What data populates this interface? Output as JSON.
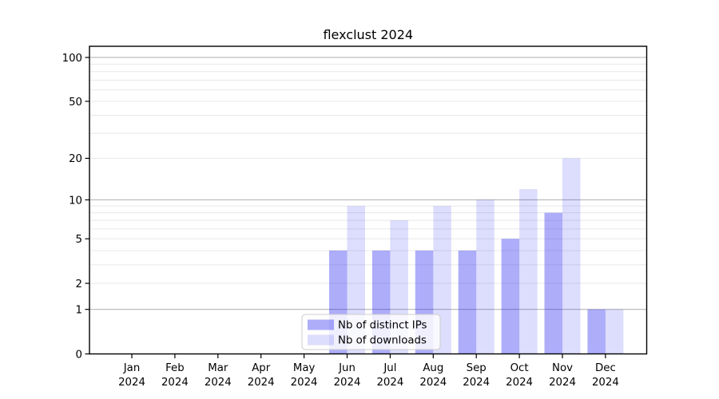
{
  "title": "flexclust 2024",
  "chart_data": {
    "type": "bar",
    "title": "flexclust 2024",
    "months": [
      "Jan",
      "Feb",
      "Mar",
      "Apr",
      "May",
      "Jun",
      "Jul",
      "Aug",
      "Sep",
      "Oct",
      "Nov",
      "Dec"
    ],
    "year_label": "2024",
    "categories": [
      "Jan 2024",
      "Feb 2024",
      "Mar 2024",
      "Apr 2024",
      "May 2024",
      "Jun 2024",
      "Jul 2024",
      "Aug 2024",
      "Sep 2024",
      "Oct 2024",
      "Nov 2024",
      "Dec 2024"
    ],
    "series": [
      {
        "key": "distinct-ips",
        "name": "Nb of distinct IPs",
        "color": "rgba(20,20,240,0.35)",
        "values": [
          0,
          0,
          0,
          0,
          0,
          4,
          4,
          4,
          4,
          5,
          8,
          1
        ]
      },
      {
        "key": "downloads",
        "name": "Nb of downloads",
        "color": "rgba(20,20,240,0.145)",
        "values": [
          0,
          0,
          0,
          0,
          0,
          9,
          7,
          9,
          10,
          12,
          20,
          1
        ]
      }
    ],
    "y_axis": {
      "scale": "log1p",
      "ticks": [
        0,
        1,
        2,
        5,
        10,
        20,
        50,
        100
      ],
      "emphasized_gridlines": [
        1,
        10,
        100
      ],
      "light_gridlines": [
        2,
        3,
        4,
        5,
        6,
        7,
        8,
        9,
        20,
        30,
        40,
        50,
        60,
        70,
        80,
        90
      ],
      "ylim": [
        0,
        118
      ]
    },
    "legend": {
      "position": "bottom-center"
    },
    "grid": true,
    "xlabel": "",
    "ylabel": ""
  },
  "colors": {
    "background": "#ffffff",
    "axis": "#000000",
    "text": "#000000",
    "grid_emphasized": "#b6b6b6",
    "grid_light": "#e8e8e8",
    "legend_border": "#cccccc",
    "legend_bg": "rgba(255,255,255,0.8)"
  }
}
